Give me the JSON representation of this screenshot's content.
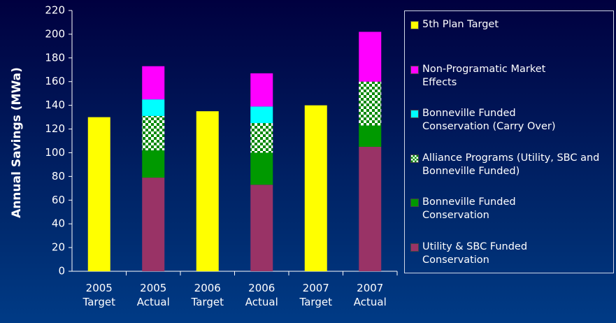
{
  "chart_data": {
    "type": "stacked-bar",
    "y_label": "Annual Savings (MWa)",
    "categories": [
      "2005 Target",
      "2005 Actual",
      "2006 Target",
      "2006 Actual",
      "2007 Target",
      "2007 Actual"
    ],
    "series": [
      {
        "name": "5th Plan Target",
        "color": "#ffff00",
        "values": [
          130,
          null,
          135,
          null,
          140,
          null
        ]
      },
      {
        "name": "Utility & SBC Funded Conservation",
        "color": "#993366",
        "values": [
          null,
          79,
          null,
          73,
          null,
          105
        ]
      },
      {
        "name": "Bonneville Funded Conservation",
        "color": "#009900",
        "values": [
          null,
          23,
          null,
          27,
          null,
          18
        ]
      },
      {
        "name": "Alliance Programs (Utility, SBC and Bonneville Funded)",
        "color": "#008800",
        "pattern": "checker",
        "values": [
          null,
          29,
          null,
          25,
          null,
          37
        ]
      },
      {
        "name": "Bonneville Funded Conservation (Carry Over)",
        "color": "#00ffff",
        "values": [
          null,
          14,
          null,
          14,
          null,
          null
        ]
      },
      {
        "name": "Non-Programatic Market Effects",
        "color": "#ff00ff",
        "values": [
          null,
          28,
          null,
          28,
          null,
          42
        ]
      }
    ],
    "ylim": [
      0,
      220
    ],
    "yticks": [
      0,
      20,
      40,
      60,
      80,
      100,
      120,
      140,
      160,
      180,
      200,
      220
    ],
    "grid": false,
    "legend": "right"
  }
}
